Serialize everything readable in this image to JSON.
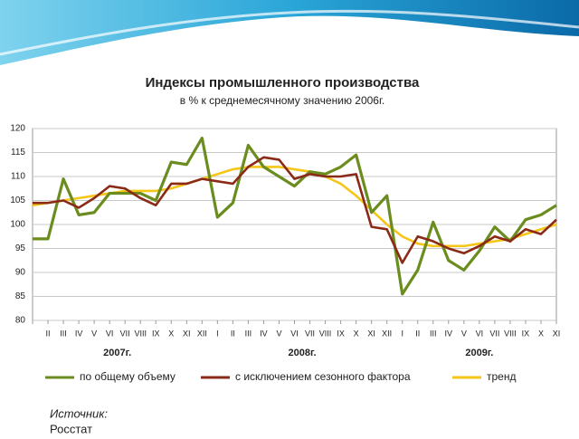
{
  "chart_data": {
    "type": "line",
    "title": "Индексы промышленного производства",
    "subtitle": "в % к среднемесячному значению 2006г.",
    "categories": [
      null,
      "II",
      "III",
      "IV",
      "V",
      "VI",
      "VII",
      "VIII",
      "IX",
      "X",
      "XI",
      "XII",
      "I",
      "II",
      "III",
      "IV",
      "V",
      "VI",
      "VII",
      "VIII",
      "IX",
      "X",
      "XI",
      "XII",
      "I",
      "II",
      "III",
      "IV",
      "V",
      "VI",
      "VII",
      "VIII",
      "IX",
      "X",
      "XI"
    ],
    "x_groups": [
      "2007г.",
      "2008г.",
      "2009г."
    ],
    "series": [
      {
        "name": "по общему объему",
        "color": "#6b8c1f",
        "values": [
          97,
          97,
          109.5,
          102,
          102.5,
          106.5,
          106.5,
          106.5,
          105,
          113,
          112.5,
          118,
          101.5,
          104.5,
          116.5,
          112,
          110,
          108,
          111,
          110.5,
          112,
          114.5,
          102.5,
          106,
          85.5,
          90.5,
          100.5,
          92.5,
          90.5,
          94.5,
          99.5,
          96.5,
          101,
          102,
          104
        ]
      },
      {
        "name": "с исключением сезонного фактора",
        "color": "#8b2a16",
        "values": [
          104.5,
          104.5,
          105,
          103.5,
          105.5,
          108,
          107.5,
          105.5,
          104,
          108.5,
          108.5,
          109.5,
          109,
          108.5,
          112,
          114,
          113.5,
          109.5,
          110.5,
          110,
          110,
          110.5,
          99.5,
          99,
          92,
          97.5,
          96.5,
          95,
          94,
          95.5,
          97.5,
          96.5,
          99,
          98,
          101
        ]
      },
      {
        "name": "тренд",
        "color": "#f5c518",
        "values": [
          104,
          104.5,
          105,
          105.5,
          106,
          106.5,
          107,
          107,
          107,
          107.5,
          108.5,
          109.5,
          110.5,
          111.5,
          112,
          112,
          112,
          111.5,
          111,
          110,
          108.5,
          106,
          103,
          100,
          97.5,
          96,
          95.5,
          95.5,
          95.5,
          96,
          96.5,
          97,
          98,
          99,
          100
        ]
      }
    ],
    "ylim": [
      80,
      120
    ],
    "yticks": [
      80,
      85,
      90,
      95,
      100,
      105,
      110,
      115,
      120
    ],
    "grid": true
  },
  "source_label": "Источник:",
  "source": "Росстат"
}
